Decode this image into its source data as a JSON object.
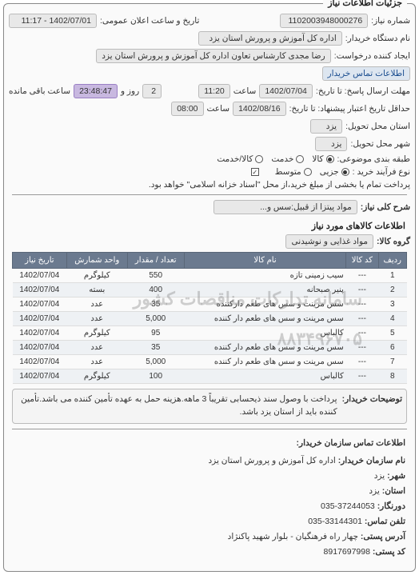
{
  "panel": {
    "title": "جزئیات اطلاعات نیاز"
  },
  "header": {
    "req_no_lbl": "شماره نیاز:",
    "req_no": "1102003948000276",
    "announce_lbl": "تاریخ و ساعت اعلان عمومی:",
    "announce": "1402/07/01 - 11:17",
    "buyer_org_lbl": "نام دستگاه خریدار:",
    "buyer_org": "اداره کل آموزش و پرورش استان یزد",
    "requester_lbl": "ایجاد کننده درخواست:",
    "requester": "رضا مجدی کارشناس تعاون اداره کل آموزش و پرورش استان یزد",
    "contact_link": "اطلاعات تماس خریدار",
    "respond_due_lbl": "مهلت ارسال پاسخ: تا تاریخ:",
    "respond_due_date": "1402/07/04",
    "time_lbl": "ساعت",
    "respond_due_time": "11:20",
    "remain_days": "2",
    "day_and_lbl": "روز و",
    "countdown": "23:48:47",
    "remain_lbl": "ساعت باقی مانده",
    "validity_lbl": "حداقل تاریخ اعتبار پیشنهاد: تا تاریخ:",
    "validity_date": "1402/08/16",
    "validity_time": "08:00",
    "loc_province_lbl": "استان محل تحویل:",
    "loc_province": "یزد",
    "loc_city_lbl": "شهر محل تحویل:",
    "loc_city": "یزد",
    "cat_lbl": "طبقه بندی موضوعی:",
    "cat_goods": "کالا",
    "cat_service": "خدمت",
    "cat_both": "کالا/خدمت",
    "proc_lbl": "نوع فرآیند خرید :",
    "proc_partial": "جزیی",
    "proc_medium": "متوسط",
    "pay_note": "پرداخت تمام یا بخشی از مبلغ خرید،از محل \"اسناد خزانه اسلامی\" خواهد بود.",
    "subject_lbl": "شرح کلی نیاز:",
    "subject": "مواد پیتزا از قبیل:سس و..."
  },
  "items": {
    "heading": "اطلاعات کالاهای مورد نیاز",
    "group_lbl": "گروه کالا:",
    "group": "مواد غذایی و نوشیدنی",
    "cols": [
      "ردیف",
      "کد کالا",
      "نام کالا",
      "تعداد / مقدار",
      "واحد شمارش",
      "تاریخ نیاز"
    ],
    "rows": [
      {
        "n": "1",
        "code": "---",
        "name": "سیب زمینی تازه",
        "qty": "550",
        "unit": "کیلوگرم",
        "date": "1402/07/04"
      },
      {
        "n": "2",
        "code": "---",
        "name": "پنیر صبحانه",
        "qty": "400",
        "unit": "بسته",
        "date": "1402/07/04"
      },
      {
        "n": "3",
        "code": "---",
        "name": "سس مرینت و سس های طعم دارکننده",
        "qty": "35",
        "unit": "عدد",
        "date": "1402/07/04"
      },
      {
        "n": "4",
        "code": "---",
        "name": "سس مرینت و سس های طعم دار کننده",
        "qty": "5,000",
        "unit": "عدد",
        "date": "1402/07/04"
      },
      {
        "n": "5",
        "code": "---",
        "name": "کالباس",
        "qty": "95",
        "unit": "کیلوگرم",
        "date": "1402/07/04"
      },
      {
        "n": "6",
        "code": "---",
        "name": "سس مرینت و سس های طعم دار کننده",
        "qty": "35",
        "unit": "عدد",
        "date": "1402/07/04"
      },
      {
        "n": "7",
        "code": "---",
        "name": "سس مرینت و سس های طعم دار کننده",
        "qty": "5,000",
        "unit": "عدد",
        "date": "1402/07/04"
      },
      {
        "n": "8",
        "code": "---",
        "name": "کالباس",
        "qty": "100",
        "unit": "کیلوگرم",
        "date": "1402/07/04"
      }
    ],
    "watermark1": "سامانه تدارکات مناقصات کشور",
    "watermark2": "۸۸۳۴۹۶۷۰۵"
  },
  "notes": {
    "lbl": "توضیحات خریدار:",
    "text": "پرداخت با وصول سند ذیحسابی تقریباً 3 ماهه.هزینه حمل به عهده تأمین کننده می باشد.تأمین کننده باید از استان یزد باشد."
  },
  "contact": {
    "heading": "اطلاعات تماس سازمان خریدار:",
    "org_lbl": "نام سازمان خریدار:",
    "org": "اداره کل آموزش و پرورش استان یزد",
    "city_lbl": "شهر:",
    "city": "یزد",
    "province_lbl": "استان:",
    "province": "یزد",
    "phone_lbl": "دورنگار:",
    "phone": "37244053-035",
    "fax_lbl": "تلفن تماس:",
    "fax": "33144301-035",
    "addr_lbl": "آدرس پستی:",
    "addr": "چهار راه فرهنگیان - بلوار شهید پاکنژاد",
    "zip_lbl": "کد پستی:",
    "zip": "8917697998"
  }
}
